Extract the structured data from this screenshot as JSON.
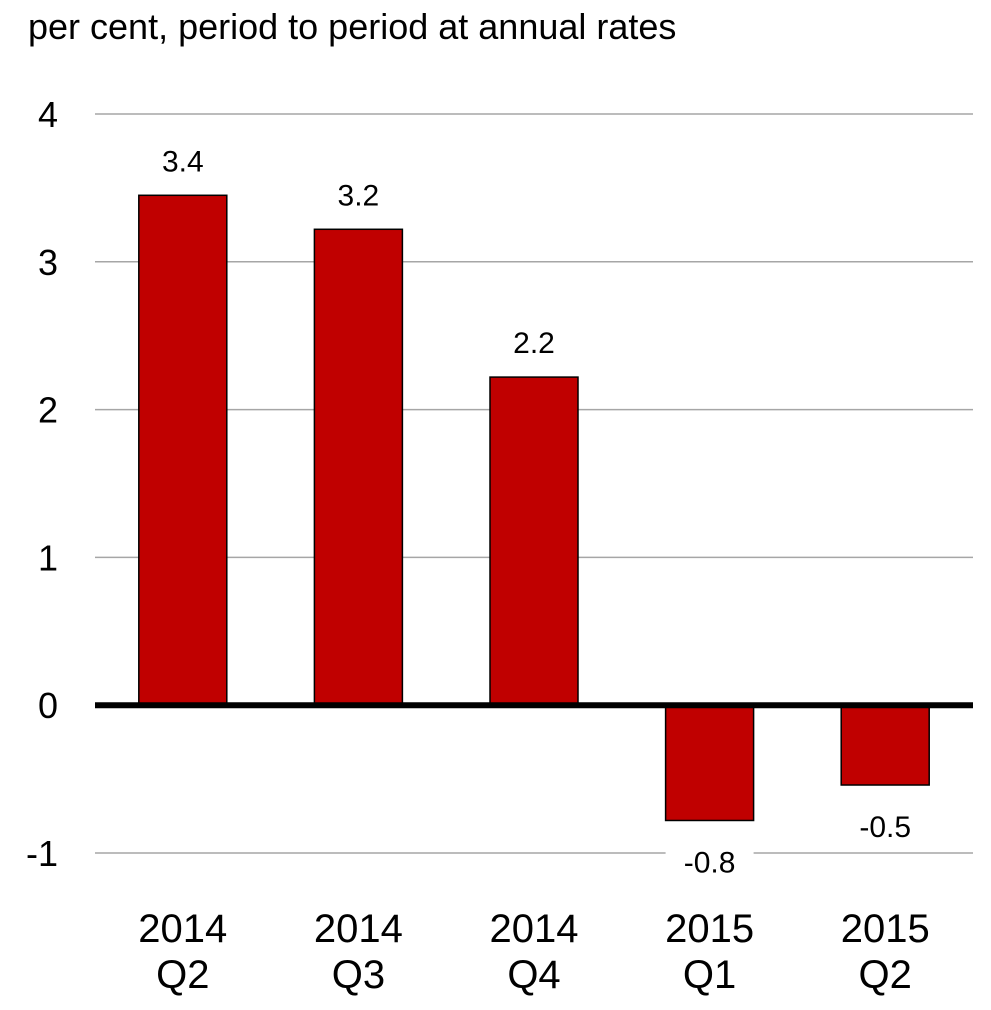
{
  "chart_data": {
    "type": "bar",
    "title": "",
    "ylabel": "per cent, period to period at annual rates",
    "xlabel": "",
    "categories": [
      [
        "2014",
        "Q2"
      ],
      [
        "2014",
        "Q3"
      ],
      [
        "2014",
        "Q4"
      ],
      [
        "2015",
        "Q1"
      ],
      [
        "2015",
        "Q2"
      ]
    ],
    "values": [
      3.45,
      3.22,
      2.22,
      -0.78,
      -0.54
    ],
    "data_labels": [
      "3.4",
      "3.2",
      "2.2",
      "-0.8",
      "-0.5"
    ],
    "ylim": [
      -1,
      4
    ],
    "yticks": [
      4,
      3,
      2,
      1,
      0,
      -1
    ],
    "ytick_labels": [
      "4",
      "3",
      "2",
      "1",
      "0",
      "-1"
    ],
    "grid": true,
    "legend": "none",
    "colors": {
      "bar_fill": "#c00000",
      "bar_stroke": "#000000",
      "grid": "#a6a6a6",
      "zero_line": "#000000",
      "text": "#000000"
    }
  }
}
